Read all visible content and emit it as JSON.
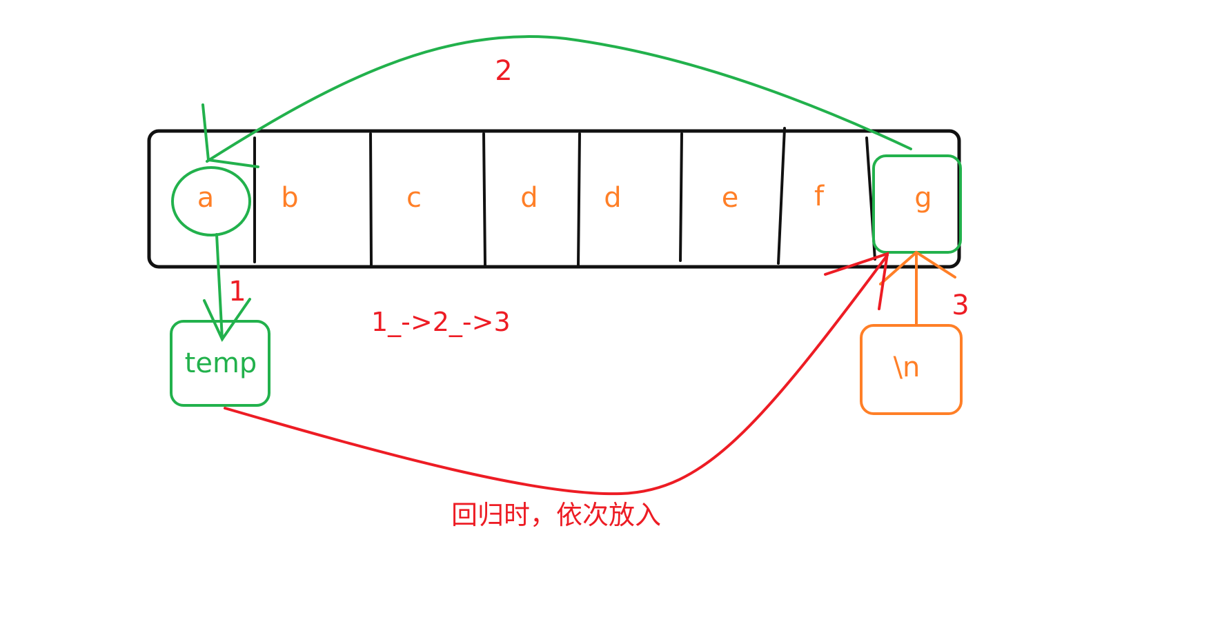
{
  "colors": {
    "outline": "#111111",
    "green": "#22b14c",
    "orange": "#ff7f27",
    "red": "#ed1c24",
    "background": "#ffffff"
  },
  "array_cells": [
    "a",
    "b",
    "c",
    "d",
    "d",
    "e",
    "f",
    "g"
  ],
  "temp_label": "temp",
  "newline_label": "\\n",
  "steps": {
    "one": "1",
    "two": "2",
    "three": "3"
  },
  "sequence_text": "1_->2_->3",
  "note_text": "回归时，依次放入"
}
